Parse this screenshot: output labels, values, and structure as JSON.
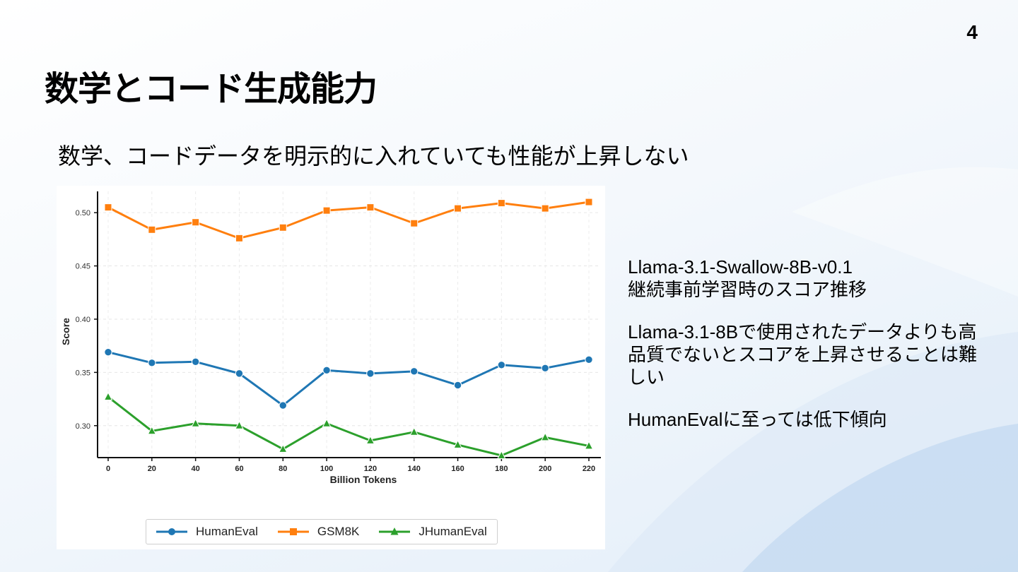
{
  "page_number": "4",
  "title": "数学とコード生成能力",
  "subtitle": "数学、コードデータを明示的に入れていても性能が上昇しない",
  "notes": [
    {
      "lines": [
        "Llama-3.1-Swallow-8B-v0.1",
        "継続事前学習時のスコア推移"
      ]
    },
    {
      "lines": [
        "Llama-3.1-8Bで使用されたデータよりも高",
        "品質でないとスコアを上昇させることは難",
        "しい"
      ]
    },
    {
      "lines": [
        "HumanEvalに至っては低下傾向"
      ]
    }
  ],
  "chart_data": {
    "type": "line",
    "xlabel": "Billion Tokens",
    "ylabel": "Score",
    "x": [
      0,
      20,
      40,
      60,
      80,
      100,
      120,
      140,
      160,
      180,
      200,
      220
    ],
    "x_ticks": [
      "0",
      "20",
      "40",
      "60",
      "80",
      "100",
      "120",
      "140",
      "160",
      "180",
      "200",
      "220"
    ],
    "y_ticks": [
      "0.30",
      "0.35",
      "0.40",
      "0.45",
      "0.50"
    ],
    "y_tick_values": [
      0.3,
      0.35,
      0.4,
      0.45,
      0.5
    ],
    "ylim": [
      0.27,
      0.52
    ],
    "grid": true,
    "legend_position": "bottom-center",
    "series": [
      {
        "name": "HumanEval",
        "color": "#1f77b4",
        "marker": "circle",
        "values": [
          0.369,
          0.359,
          0.36,
          0.349,
          0.319,
          0.352,
          0.349,
          0.351,
          0.338,
          0.357,
          0.354,
          0.362
        ]
      },
      {
        "name": "GSM8K",
        "color": "#ff7f0e",
        "marker": "square",
        "values": [
          0.505,
          0.484,
          0.491,
          0.476,
          0.486,
          0.502,
          0.505,
          0.49,
          0.504,
          0.509,
          0.504,
          0.51
        ]
      },
      {
        "name": "JHumanEval",
        "color": "#2ca02c",
        "marker": "triangle",
        "values": [
          0.327,
          0.295,
          0.302,
          0.3,
          0.278,
          0.302,
          0.286,
          0.294,
          0.282,
          0.272,
          0.289,
          0.281
        ]
      }
    ]
  }
}
